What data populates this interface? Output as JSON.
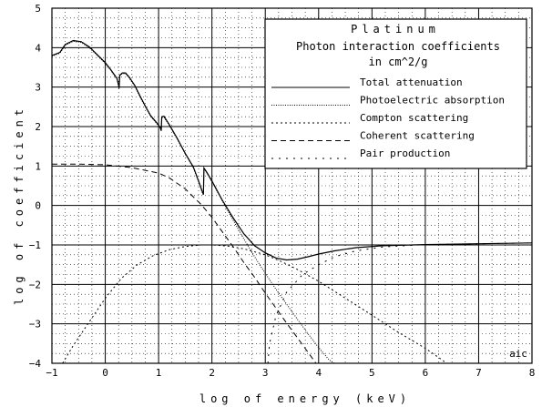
{
  "chart_data": {
    "type": "line",
    "title": "Platinum",
    "subtitle": "Photon interaction coefficients",
    "units": "in cm^2/g",
    "xlabel": "log of energy (keV)",
    "ylabel": "log of coefficient",
    "watermark": "aic",
    "xlim": [
      -1,
      8
    ],
    "ylim": [
      -4,
      5
    ],
    "x_ticks": [
      -1,
      0,
      1,
      2,
      3,
      4,
      5,
      6,
      7,
      8
    ],
    "y_ticks": [
      5,
      4,
      3,
      2,
      1,
      0,
      -1,
      -2,
      -3,
      -4
    ],
    "grid": "on (major solid, minor dotted)",
    "legend_position": "top-right",
    "series": [
      {
        "name": "Total attenuation",
        "style": "solid",
        "points": [
          [
            -1,
            3.8
          ],
          [
            -0.85,
            3.88
          ],
          [
            -0.75,
            4.08
          ],
          [
            -0.6,
            4.18
          ],
          [
            -0.45,
            4.15
          ],
          [
            -0.3,
            4.02
          ],
          [
            -0.15,
            3.82
          ],
          [
            0,
            3.62
          ],
          [
            0.1,
            3.45
          ],
          [
            0.22,
            3.22
          ],
          [
            0.25,
            3.05
          ],
          [
            0.26,
            2.98
          ],
          [
            0.27,
            3.3
          ],
          [
            0.32,
            3.36
          ],
          [
            0.38,
            3.36
          ],
          [
            0.45,
            3.25
          ],
          [
            0.55,
            3.05
          ],
          [
            0.65,
            2.78
          ],
          [
            0.75,
            2.52
          ],
          [
            0.85,
            2.28
          ],
          [
            0.95,
            2.12
          ],
          [
            1.03,
            1.98
          ],
          [
            1.05,
            1.9
          ],
          [
            1.06,
            2.25
          ],
          [
            1.1,
            2.26
          ],
          [
            1.2,
            2.05
          ],
          [
            1.35,
            1.7
          ],
          [
            1.5,
            1.32
          ],
          [
            1.65,
            0.98
          ],
          [
            1.75,
            0.62
          ],
          [
            1.82,
            0.35
          ],
          [
            1.84,
            0.28
          ],
          [
            1.85,
            0.95
          ],
          [
            1.9,
            0.85
          ],
          [
            2.0,
            0.62
          ],
          [
            2.2,
            0.12
          ],
          [
            2.4,
            -0.32
          ],
          [
            2.6,
            -0.72
          ],
          [
            2.8,
            -1.02
          ],
          [
            3.0,
            -1.2
          ],
          [
            3.2,
            -1.33
          ],
          [
            3.4,
            -1.38
          ],
          [
            3.6,
            -1.36
          ],
          [
            3.8,
            -1.3
          ],
          [
            4.0,
            -1.23
          ],
          [
            4.3,
            -1.15
          ],
          [
            4.7,
            -1.07
          ],
          [
            5.2,
            -1.02
          ],
          [
            6.0,
            -0.99
          ],
          [
            7.0,
            -0.97
          ],
          [
            8.0,
            -0.95
          ]
        ]
      },
      {
        "name": "Photoelectric absorption",
        "style": "fine-dotted",
        "points": [
          [
            -1,
            3.78
          ],
          [
            -0.85,
            3.86
          ],
          [
            -0.75,
            4.06
          ],
          [
            -0.6,
            4.16
          ],
          [
            -0.45,
            4.13
          ],
          [
            -0.3,
            4.0
          ],
          [
            -0.15,
            3.8
          ],
          [
            0,
            3.6
          ],
          [
            0.1,
            3.43
          ],
          [
            0.22,
            3.2
          ],
          [
            0.25,
            3.03
          ],
          [
            0.26,
            2.96
          ],
          [
            0.27,
            3.28
          ],
          [
            0.32,
            3.34
          ],
          [
            0.38,
            3.34
          ],
          [
            0.45,
            3.23
          ],
          [
            0.55,
            3.03
          ],
          [
            0.65,
            2.76
          ],
          [
            0.75,
            2.5
          ],
          [
            0.85,
            2.26
          ],
          [
            0.95,
            2.1
          ],
          [
            1.03,
            1.96
          ],
          [
            1.05,
            1.88
          ],
          [
            1.06,
            2.23
          ],
          [
            1.1,
            2.24
          ],
          [
            1.2,
            2.03
          ],
          [
            1.35,
            1.68
          ],
          [
            1.5,
            1.3
          ],
          [
            1.65,
            0.96
          ],
          [
            1.75,
            0.6
          ],
          [
            1.82,
            0.33
          ],
          [
            1.84,
            0.26
          ],
          [
            1.85,
            0.93
          ],
          [
            1.9,
            0.83
          ],
          [
            2.0,
            0.6
          ],
          [
            2.2,
            0.1
          ],
          [
            2.4,
            -0.38
          ],
          [
            2.6,
            -0.85
          ],
          [
            2.8,
            -1.3
          ],
          [
            3.0,
            -1.72
          ],
          [
            3.2,
            -2.12
          ],
          [
            3.4,
            -2.5
          ],
          [
            3.6,
            -2.88
          ],
          [
            3.8,
            -3.25
          ],
          [
            4.0,
            -3.6
          ],
          [
            4.2,
            -3.92
          ],
          [
            4.3,
            -4.0
          ]
        ]
      },
      {
        "name": "Compton scattering",
        "style": "dotted",
        "points": [
          [
            -0.8,
            -4.0
          ],
          [
            -0.6,
            -3.55
          ],
          [
            -0.3,
            -2.95
          ],
          [
            0,
            -2.35
          ],
          [
            0.3,
            -1.85
          ],
          [
            0.6,
            -1.5
          ],
          [
            0.9,
            -1.27
          ],
          [
            1.2,
            -1.12
          ],
          [
            1.5,
            -1.04
          ],
          [
            1.8,
            -1.0
          ],
          [
            2.0,
            -1.0
          ],
          [
            2.3,
            -1.03
          ],
          [
            2.6,
            -1.1
          ],
          [
            3.0,
            -1.25
          ],
          [
            3.3,
            -1.42
          ],
          [
            3.6,
            -1.62
          ],
          [
            4.0,
            -1.92
          ],
          [
            4.5,
            -2.35
          ],
          [
            5.0,
            -2.78
          ],
          [
            5.5,
            -3.22
          ],
          [
            6.0,
            -3.62
          ],
          [
            6.3,
            -3.9
          ],
          [
            6.4,
            -4.0
          ]
        ]
      },
      {
        "name": "Coherent scattering",
        "style": "dashed",
        "points": [
          [
            -1,
            1.05
          ],
          [
            -0.5,
            1.05
          ],
          [
            0,
            1.03
          ],
          [
            0.5,
            0.96
          ],
          [
            1.0,
            0.82
          ],
          [
            1.2,
            0.7
          ],
          [
            1.5,
            0.42
          ],
          [
            1.8,
            0.02
          ],
          [
            2.0,
            -0.3
          ],
          [
            2.2,
            -0.68
          ],
          [
            2.4,
            -1.05
          ],
          [
            2.6,
            -1.45
          ],
          [
            2.8,
            -1.82
          ],
          [
            3.0,
            -2.22
          ],
          [
            3.2,
            -2.6
          ],
          [
            3.4,
            -2.98
          ],
          [
            3.6,
            -3.35
          ],
          [
            3.8,
            -3.72
          ],
          [
            3.95,
            -4.0
          ]
        ]
      },
      {
        "name": "Pair production",
        "style": "sparse-dotted",
        "points": [
          [
            3.05,
            -4.0
          ],
          [
            3.08,
            -3.5
          ],
          [
            3.2,
            -2.8
          ],
          [
            3.4,
            -2.2
          ],
          [
            3.7,
            -1.75
          ],
          [
            4.0,
            -1.5
          ],
          [
            4.3,
            -1.3
          ],
          [
            4.7,
            -1.15
          ],
          [
            5.2,
            -1.05
          ],
          [
            6.0,
            -0.99
          ],
          [
            7.0,
            -0.97
          ],
          [
            8.0,
            -0.95
          ]
        ]
      }
    ]
  }
}
